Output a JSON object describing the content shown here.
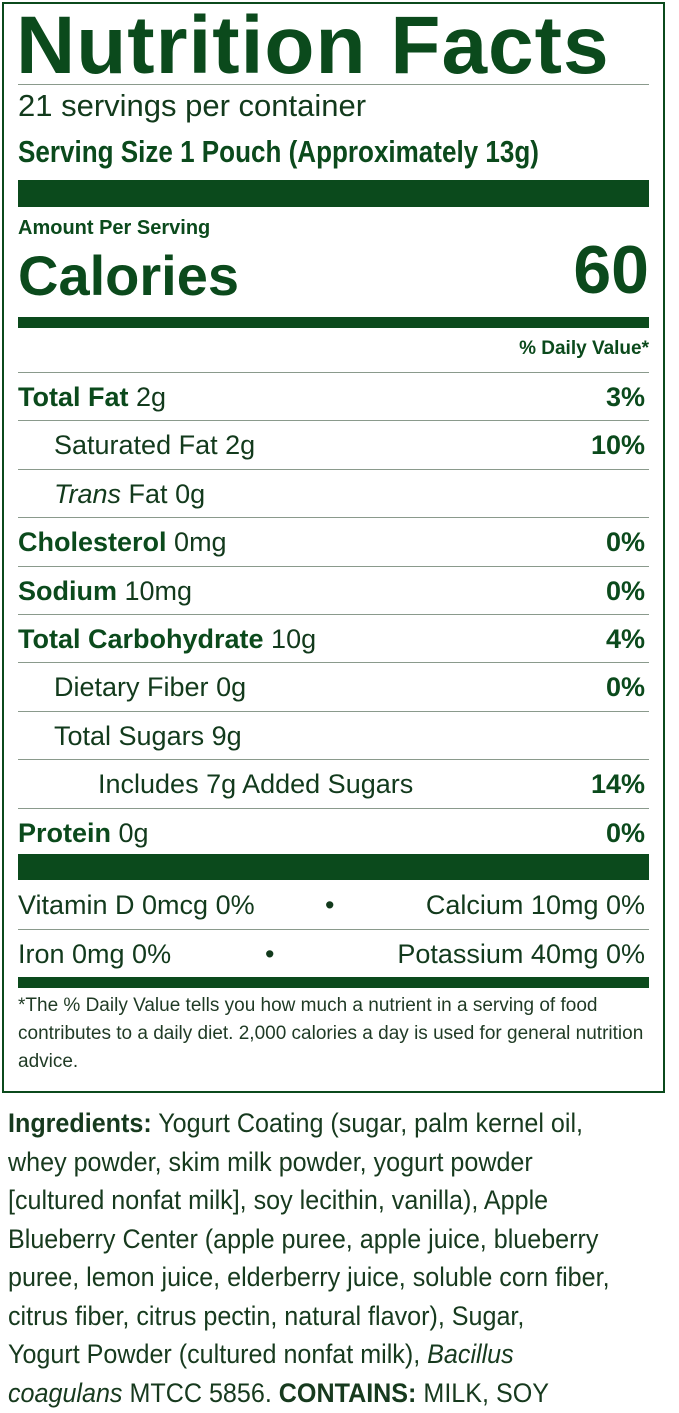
{
  "label": {
    "title": "Nutrition Facts",
    "servings_per_container": "21 servings per container",
    "serving_size": "Serving Size 1 Pouch (Approximately 13g)",
    "amount_per_serving": "Amount Per Serving",
    "calories_label": "Calories",
    "calories_value": "60",
    "daily_value_header": "% Daily Value*",
    "nutrients": [
      {
        "name": "Total Fat",
        "amount": "2g",
        "dv": "3%",
        "indent": 0,
        "bold": true
      },
      {
        "name": "Saturated Fat",
        "amount": "2g",
        "dv": "10%",
        "indent": 1,
        "bold": false
      },
      {
        "name_italic": "Trans",
        "name": "Fat",
        "amount": "0g",
        "dv": "",
        "indent": 1,
        "bold": false
      },
      {
        "name": "Cholesterol",
        "amount": "0mg",
        "dv": "0%",
        "indent": 0,
        "bold": true
      },
      {
        "name": "Sodium",
        "amount": "10mg",
        "dv": "0%",
        "indent": 0,
        "bold": true
      },
      {
        "name": "Total Carbohydrate",
        "amount": "10g",
        "dv": "4%",
        "indent": 0,
        "bold": true
      },
      {
        "name": "Dietary Fiber",
        "amount": "0g",
        "dv": "0%",
        "indent": 1,
        "bold": false
      },
      {
        "name": "Total Sugars",
        "amount": "9g",
        "dv": "",
        "indent": 1,
        "bold": false
      },
      {
        "name": "Includes 7g Added Sugars",
        "amount": "",
        "dv": "14%",
        "indent": 2,
        "bold": false
      },
      {
        "name": "Protein",
        "amount": "0g",
        "dv": "0%",
        "indent": 0,
        "bold": true
      }
    ],
    "vitamins": [
      {
        "left": "Vitamin D 0mcg 0%",
        "bullet": "•",
        "right": "Calcium 10mg 0%"
      },
      {
        "left": "Iron 0mg 0%",
        "bullet": "•",
        "right": "Potassium 40mg 0%"
      }
    ],
    "footnote": "*The % Daily Value tells you how much a nutrient in a serving of food contributes to a daily diet. 2,000 calories a day is used for general nutrition advice."
  },
  "ingredients": {
    "lines": [
      [
        {
          "t": "Ingredients:",
          "s": "b"
        },
        {
          "t": " Yogurt Coating (sugar, palm kernel oil,"
        }
      ],
      [
        {
          "t": "whey powder, skim milk powder, yogurt powder"
        }
      ],
      [
        {
          "t": "[cultured nonfat milk], soy lecithin, vanilla), Apple"
        }
      ],
      [
        {
          "t": "Blueberry Center (apple puree, apple juice, blueberry"
        }
      ],
      [
        {
          "t": "puree, lemon juice, elderberry juice, soluble corn fiber,"
        }
      ],
      [
        {
          "t": "citrus fiber, citrus pectin, natural flavor), Sugar,"
        }
      ],
      [
        {
          "t": "Yogurt Powder (cultured nonfat milk), "
        },
        {
          "t": "Bacillus",
          "s": "i"
        }
      ],
      [
        {
          "t": "coagulans",
          "s": "i"
        },
        {
          "t": " MTCC 5856. "
        },
        {
          "t": "CONTAINS:",
          "s": "b"
        },
        {
          "t": " MILK, SOY"
        }
      ]
    ]
  },
  "colors": {
    "label_green": "#0b4a1c",
    "text": "#123a1c"
  }
}
